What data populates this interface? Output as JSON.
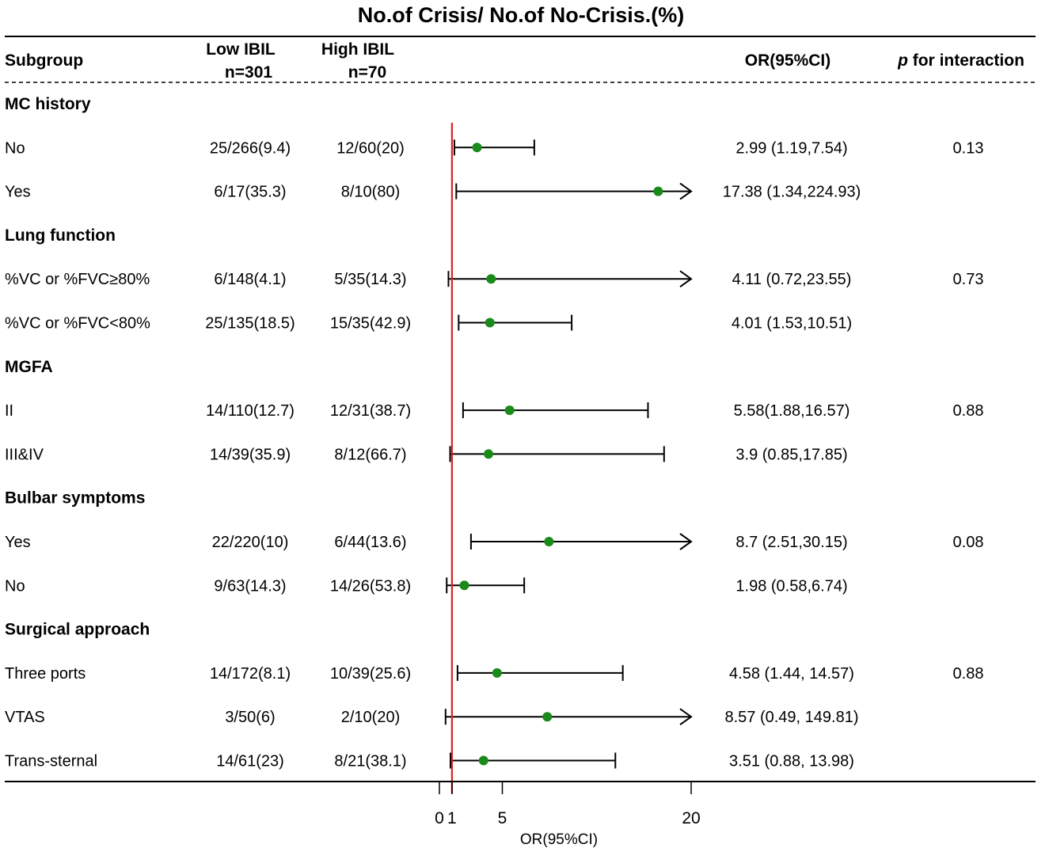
{
  "chart_data": {
    "type": "forest",
    "title": "No.of Crisis/ No.of No-Crisis.(%)",
    "columns": {
      "subgroup": "Subgroup",
      "low_line1": "Low IBIL",
      "low_line2": "n=301",
      "high_line1": "High IBIL",
      "high_line2": "n=70",
      "or": "OR(95%CI)",
      "p_italic": "p",
      "p_rest": " for interaction"
    },
    "groups": [
      {
        "name": "MC history",
        "rows": [
          {
            "label": "No",
            "low": "25/266(9.4)",
            "high": "12/60(20)",
            "or_text": "2.99 (1.19,7.54)",
            "p": "0.13",
            "or": 2.99,
            "lo": 1.19,
            "hi": 7.54
          },
          {
            "label": "Yes",
            "low": "6/17(35.3)",
            "high": "8/10(80)",
            "or_text": "17.38 (1.34,224.93)",
            "p": "",
            "or": 17.38,
            "lo": 1.34,
            "hi": 224.93
          }
        ]
      },
      {
        "name": "Lung function",
        "rows": [
          {
            "label": "%VC or %FVC≥80%",
            "low": "6/148(4.1)",
            "high": "5/35(14.3)",
            "or_text": "4.11 (0.72,23.55)",
            "p": "0.73",
            "or": 4.11,
            "lo": 0.72,
            "hi": 23.55
          },
          {
            "label": "%VC or %FVC<80%",
            "low": "25/135(18.5)",
            "high": "15/35(42.9)",
            "or_text": "4.01 (1.53,10.51)",
            "p": "",
            "or": 4.01,
            "lo": 1.53,
            "hi": 10.51
          }
        ]
      },
      {
        "name": "MGFA",
        "rows": [
          {
            "label": "II",
            "low": "14/110(12.7)",
            "high": "12/31(38.7)",
            "or_text": "5.58(1.88,16.57)",
            "p": "0.88",
            "or": 5.58,
            "lo": 1.88,
            "hi": 16.57
          },
          {
            "label": "III&IV",
            "low": "14/39(35.9)",
            "high": "8/12(66.7)",
            "or_text": "3.9 (0.85,17.85)",
            "p": "",
            "or": 3.9,
            "lo": 0.85,
            "hi": 17.85
          }
        ]
      },
      {
        "name": "Bulbar symptoms",
        "rows": [
          {
            "label": "Yes",
            "low": "22/220(10)",
            "high": "6/44(13.6)",
            "or_text": "8.7 (2.51,30.15)",
            "p": "0.08",
            "or": 8.7,
            "lo": 2.51,
            "hi": 30.15
          },
          {
            "label": "No",
            "low": "9/63(14.3)",
            "high": "14/26(53.8)",
            "or_text": "1.98 (0.58,6.74)",
            "p": "",
            "or": 1.98,
            "lo": 0.58,
            "hi": 6.74
          }
        ]
      },
      {
        "name": "Surgical approach",
        "rows": [
          {
            "label": "Three ports",
            "low": "14/172(8.1)",
            "high": "10/39(25.6)",
            "or_text": "4.58 (1.44, 14.57)",
            "p": "0.88",
            "or": 4.58,
            "lo": 1.44,
            "hi": 14.57
          },
          {
            "label": "VTAS",
            "low": "3/50(6)",
            "high": "2/10(20)",
            "or_text": "8.57 (0.49, 149.81)",
            "p": "",
            "or": 8.57,
            "lo": 0.49,
            "hi": 149.81
          },
          {
            "label": "Trans-sternal",
            "low": "14/61(23)",
            "high": "8/21(38.1)",
            "or_text": "3.51 (0.88, 13.98)",
            "p": "",
            "or": 3.51,
            "lo": 0.88,
            "hi": 13.98
          }
        ]
      }
    ],
    "x_axis": {
      "label": "OR(95%CI)",
      "ticks": [
        0,
        1,
        5,
        20
      ],
      "tick_labels": [
        "0",
        "1",
        "5",
        "20"
      ],
      "xlim": [
        0,
        20
      ],
      "reference_line": 1,
      "arrow_when_exceeds_max": true
    }
  },
  "colors": {
    "point": "#1a8a1a",
    "reference_line": "#e02020",
    "lines": "#000000"
  }
}
